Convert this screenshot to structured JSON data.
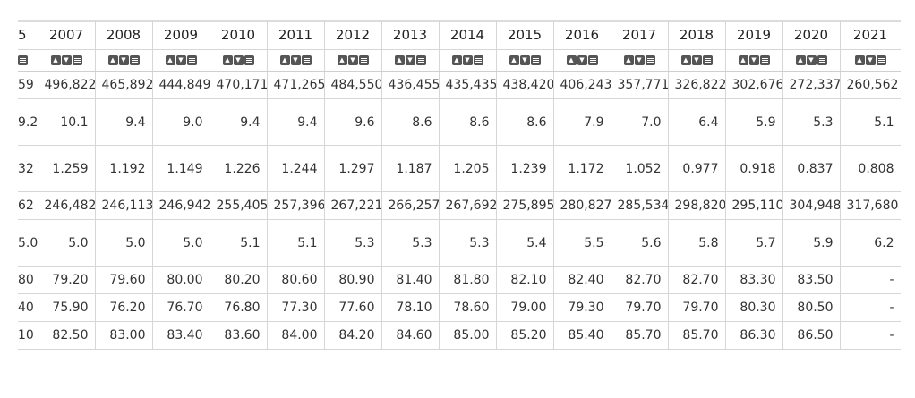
{
  "table": {
    "headers": [
      "5",
      "2007",
      "2008",
      "2009",
      "2010",
      "2011",
      "2012",
      "2013",
      "2014",
      "2015",
      "2016",
      "2017",
      "2018",
      "2019",
      "2020",
      "2021"
    ],
    "sort_icons": {
      "up": "triangle-up-icon",
      "down": "triangle-down-icon",
      "menu": "menu-icon"
    },
    "rows": [
      {
        "height": 31,
        "cells": [
          "59",
          "496,822",
          "465,892",
          "444,849",
          "470,171",
          "471,265",
          "484,550",
          "436,455",
          "435,435",
          "438,420",
          "406,243",
          "357,771",
          "326,822",
          "302,676",
          "272,337",
          "260,562"
        ]
      },
      {
        "height": 52,
        "cells": [
          "9.2",
          "10.1",
          "9.4",
          "9.0",
          "9.4",
          "9.4",
          "9.6",
          "8.6",
          "8.6",
          "8.6",
          "7.9",
          "7.0",
          "6.4",
          "5.9",
          "5.3",
          "5.1"
        ]
      },
      {
        "height": 52,
        "cells": [
          "32",
          "1.259",
          "1.192",
          "1.149",
          "1.226",
          "1.244",
          "1.297",
          "1.187",
          "1.205",
          "1.239",
          "1.172",
          "1.052",
          "0.977",
          "0.918",
          "0.837",
          "0.808"
        ]
      },
      {
        "height": 31,
        "cells": [
          "62",
          "246,482",
          "246,113",
          "246,942",
          "255,405",
          "257,396",
          "267,221",
          "266,257",
          "267,692",
          "275,895",
          "280,827",
          "285,534",
          "298,820",
          "295,110",
          "304,948",
          "317,680"
        ]
      },
      {
        "height": 52,
        "cells": [
          "5.0",
          "5.0",
          "5.0",
          "5.0",
          "5.1",
          "5.1",
          "5.3",
          "5.3",
          "5.3",
          "5.4",
          "5.5",
          "5.6",
          "5.8",
          "5.7",
          "5.9",
          "6.2"
        ]
      },
      {
        "height": 31,
        "cells": [
          "80",
          "79.20",
          "79.60",
          "80.00",
          "80.20",
          "80.60",
          "80.90",
          "81.40",
          "81.80",
          "82.10",
          "82.40",
          "82.70",
          "82.70",
          "83.30",
          "83.50",
          "-"
        ]
      },
      {
        "height": 31,
        "cells": [
          "40",
          "75.90",
          "76.20",
          "76.70",
          "76.80",
          "77.30",
          "77.60",
          "78.10",
          "78.60",
          "79.00",
          "79.30",
          "79.70",
          "79.70",
          "80.30",
          "80.50",
          "-"
        ]
      },
      {
        "height": 31,
        "cells": [
          "10",
          "82.50",
          "83.00",
          "83.40",
          "83.60",
          "84.00",
          "84.20",
          "84.60",
          "85.00",
          "85.20",
          "85.40",
          "85.70",
          "85.70",
          "86.30",
          "86.50",
          "-"
        ]
      }
    ]
  }
}
